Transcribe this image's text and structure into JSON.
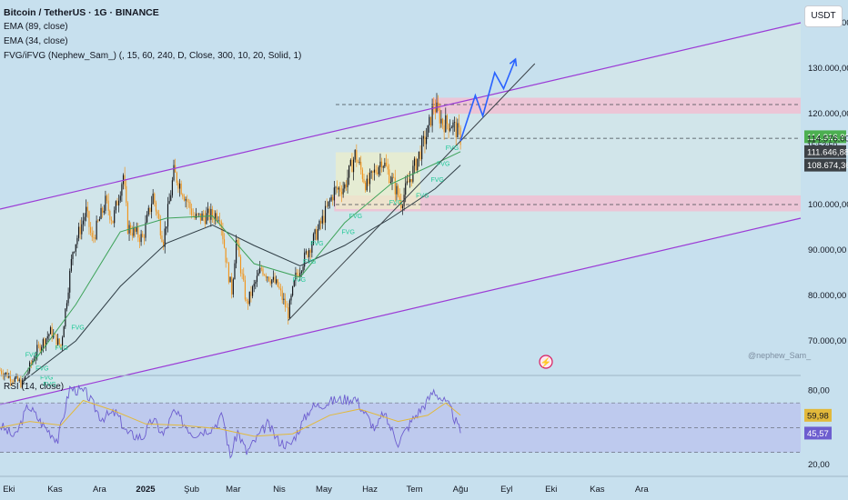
{
  "header": {
    "symbol": "Bitcoin / TetherUS · 1G · BINANCE",
    "indicator_1": "EMA (89, close)",
    "indicator_2": "EMA (34, close)",
    "indicator_3": "FVG/iFVG (Nephew_Sam_) (, 15, 60, 240, D, Close, 300, 10, 20, Solid, 1)",
    "currency_button": "USDT",
    "watermark": "@nephew_Sam_"
  },
  "rsi": {
    "title": "RSI (14, close)"
  },
  "colors": {
    "background": "#c7e0ee",
    "candle_up": "#111318",
    "candle_down": "#f0941c",
    "ema89": "#2f3d45",
    "ema34": "#3ea35a",
    "channel": "#9b3bd6",
    "fvg_box": "#f1bfd2",
    "fvg_label": "#20c997",
    "projection": "#2962ff",
    "rsi_line": "#6d5ecf",
    "rsi_ma": "#e2b93b",
    "last_price_tag": "#4caf50"
  },
  "chart_data": {
    "type": "candlestick",
    "symbol": "BTCUSDT",
    "timeframe": "1D",
    "price_axis": {
      "scale": "linear",
      "ylim": [
        63000,
        145000
      ],
      "ticks": [
        70000,
        80000,
        90000,
        100000,
        110000,
        120000,
        130000,
        140000
      ],
      "tick_labels": [
        "70.000,00",
        "80.000,00",
        "90.000,00",
        "100.000,00",
        "",
        "120.000,00",
        "130.000,00",
        "140.000,00"
      ]
    },
    "time_axis": {
      "xlim": [
        "2024-09-25",
        "2026-03-18"
      ],
      "ticks": [
        "2024-10-01",
        "2024-11-01",
        "2024-12-01",
        "2025-01-01",
        "2025-02-01",
        "2025-03-01",
        "2025-04-01",
        "2025-05-01",
        "2025-06-01",
        "2025-07-01",
        "2025-08-01",
        "2025-09-01",
        "2025-10-01",
        "2025-11-01",
        "2025-12-01"
      ],
      "tick_labels": [
        "Eki",
        "Kas",
        "Ara",
        "2025",
        "Şub",
        "Mar",
        "Nis",
        "May",
        "Haz",
        "Tem",
        "Ağu",
        "Eyl",
        "Eki",
        "Kas",
        "Ara"
      ]
    },
    "price_path": [
      [
        "2024-09-25",
        63500
      ],
      [
        "2024-10-10",
        60500
      ],
      [
        "2024-10-20",
        68000
      ],
      [
        "2024-10-29",
        72000
      ],
      [
        "2024-11-05",
        68800
      ],
      [
        "2024-11-13",
        90000
      ],
      [
        "2024-11-22",
        98500
      ],
      [
        "2024-11-26",
        92000
      ],
      [
        "2024-12-05",
        100500
      ],
      [
        "2024-12-10",
        96500
      ],
      [
        "2024-12-17",
        106500
      ],
      [
        "2024-12-20",
        95000
      ],
      [
        "2024-12-30",
        92500
      ],
      [
        "2025-01-06",
        102000
      ],
      [
        "2025-01-13",
        92000
      ],
      [
        "2025-01-20",
        107000
      ],
      [
        "2025-01-24",
        104500
      ],
      [
        "2025-02-03",
        97000
      ],
      [
        "2025-02-12",
        97500
      ],
      [
        "2025-02-20",
        98000
      ],
      [
        "2025-02-25",
        86000
      ],
      [
        "2025-02-28",
        81000
      ],
      [
        "2025-03-03",
        92000
      ],
      [
        "2025-03-10",
        78000
      ],
      [
        "2025-03-20",
        86000
      ],
      [
        "2025-03-31",
        82000
      ],
      [
        "2025-04-07",
        76000
      ],
      [
        "2025-04-12",
        84000
      ],
      [
        "2025-04-22",
        91000
      ],
      [
        "2025-04-28",
        95000
      ],
      [
        "2025-05-08",
        103000
      ],
      [
        "2025-05-15",
        104000
      ],
      [
        "2025-05-22",
        111000
      ],
      [
        "2025-05-30",
        104000
      ],
      [
        "2025-06-09",
        110000
      ],
      [
        "2025-06-17",
        104500
      ],
      [
        "2025-06-22",
        100500
      ],
      [
        "2025-06-30",
        107500
      ],
      [
        "2025-07-10",
        116000
      ],
      [
        "2025-07-14",
        122000
      ],
      [
        "2025-07-20",
        118000
      ],
      [
        "2025-07-26",
        117800
      ],
      [
        "2025-07-31",
        115500
      ],
      [
        "2025-08-01",
        114577
      ]
    ],
    "series": [
      {
        "name": "EMA (89, close)",
        "points": [
          [
            "2024-10-10",
            61000
          ],
          [
            "2024-11-15",
            70000
          ],
          [
            "2024-12-15",
            82000
          ],
          [
            "2025-01-15",
            91500
          ],
          [
            "2025-02-15",
            95500
          ],
          [
            "2025-03-15",
            91000
          ],
          [
            "2025-04-15",
            86500
          ],
          [
            "2025-05-15",
            91000
          ],
          [
            "2025-06-15",
            97000
          ],
          [
            "2025-07-15",
            103500
          ],
          [
            "2025-08-01",
            108674
          ]
        ]
      },
      {
        "name": "EMA (34, close)",
        "points": [
          [
            "2024-10-10",
            62000
          ],
          [
            "2024-11-15",
            78000
          ],
          [
            "2024-12-15",
            94000
          ],
          [
            "2025-01-15",
            97000
          ],
          [
            "2025-02-15",
            97500
          ],
          [
            "2025-03-15",
            87000
          ],
          [
            "2025-04-15",
            84000
          ],
          [
            "2025-05-15",
            96000
          ],
          [
            "2025-06-15",
            104500
          ],
          [
            "2025-07-15",
            109000
          ],
          [
            "2025-08-01",
            111647
          ]
        ]
      }
    ],
    "annotations": {
      "channel_upper": [
        [
          "2024-09-25",
          99000
        ],
        [
          "2026-03-18",
          140000
        ]
      ],
      "channel_lower": [
        [
          "2024-09-25",
          56000
        ],
        [
          "2026-03-18",
          97000
        ]
      ],
      "trendline": [
        [
          "2025-04-07",
          74500
        ],
        [
          "2025-09-20",
          131000
        ]
      ],
      "fvg_zones": [
        {
          "from": "2025-07-13",
          "to": "2026-03-18",
          "low": 120000,
          "high": 123500
        },
        {
          "from": "2025-05-08",
          "to": "2026-03-18",
          "low": 98500,
          "high": 102000
        }
      ],
      "consolidation_box": {
        "from": "2025-05-09",
        "to": "2025-07-05",
        "low": 99000,
        "high": 111500
      },
      "dashed_levels": [
        122000,
        114576,
        100000
      ],
      "fvg_labels": [
        [
          "2024-10-12",
          66500
        ],
        [
          "2024-10-19",
          63500
        ],
        [
          "2024-10-22",
          61500
        ],
        [
          "2024-10-24",
          60000
        ],
        [
          "2024-11-01",
          68000
        ],
        [
          "2024-11-12",
          72500
        ],
        [
          "2025-04-10",
          83000
        ],
        [
          "2025-04-17",
          87000
        ],
        [
          "2025-04-22",
          91000
        ],
        [
          "2025-05-13",
          93500
        ],
        [
          "2025-05-18",
          97000
        ],
        [
          "2025-06-14",
          100000
        ],
        [
          "2025-07-02",
          101500
        ],
        [
          "2025-07-12",
          105000
        ],
        [
          "2025-07-16",
          108500
        ],
        [
          "2025-07-22",
          112000
        ]
      ],
      "projection_path": [
        [
          "2025-08-01",
          114000
        ],
        [
          "2025-08-11",
          124000
        ],
        [
          "2025-08-16",
          119500
        ],
        [
          "2025-08-24",
          129000
        ],
        [
          "2025-08-30",
          125500
        ],
        [
          "2025-09-07",
          132000
        ]
      ]
    },
    "price_labels": [
      {
        "value": 114916.8,
        "text": "114.916,80",
        "color": "#4caf50",
        "style": "tag"
      },
      {
        "value": 114576,
        "text": "114.576,00",
        "style": "plain"
      },
      {
        "value": 113200,
        "text": "15:53:50",
        "style": "plain-small"
      },
      {
        "value": 111646.88,
        "text": "111.646,88",
        "color": "#3c4146",
        "style": "tag"
      },
      {
        "value": 108674.36,
        "text": "108.674,36",
        "color": "#3c4146",
        "style": "tag"
      }
    ],
    "rsi_pane": {
      "title": "RSI (14, close)",
      "ylim": [
        15,
        90
      ],
      "ticks": [
        20,
        40,
        60,
        80
      ],
      "tick_labels": [
        "20,00",
        "",
        "",
        "80,00"
      ],
      "band": [
        30,
        70
      ],
      "midline": 50,
      "rsi_path": [
        [
          "2024-09-25",
          52
        ],
        [
          "2024-10-05",
          42
        ],
        [
          "2024-10-14",
          68
        ],
        [
          "2024-10-24",
          52
        ],
        [
          "2024-11-03",
          40
        ],
        [
          "2024-11-11",
          82
        ],
        [
          "2024-11-22",
          78
        ],
        [
          "2024-12-02",
          58
        ],
        [
          "2024-12-12",
          62
        ],
        [
          "2024-12-20",
          45
        ],
        [
          "2024-12-30",
          42
        ],
        [
          "2025-01-06",
          57
        ],
        [
          "2025-01-13",
          44
        ],
        [
          "2025-01-20",
          63
        ],
        [
          "2025-02-02",
          45
        ],
        [
          "2025-02-15",
          50
        ],
        [
          "2025-02-22",
          60
        ],
        [
          "2025-02-27",
          26
        ],
        [
          "2025-03-04",
          47
        ],
        [
          "2025-03-10",
          30
        ],
        [
          "2025-03-24",
          53
        ],
        [
          "2025-03-31",
          40
        ],
        [
          "2025-04-08",
          35
        ],
        [
          "2025-04-22",
          66
        ],
        [
          "2025-05-08",
          72
        ],
        [
          "2025-05-22",
          74
        ],
        [
          "2025-06-05",
          48
        ],
        [
          "2025-06-10",
          62
        ],
        [
          "2025-06-20",
          38
        ],
        [
          "2025-06-30",
          57
        ],
        [
          "2025-07-10",
          72
        ],
        [
          "2025-07-14",
          80
        ],
        [
          "2025-07-25",
          66
        ],
        [
          "2025-08-01",
          45.57
        ]
      ],
      "ma_path": [
        [
          "2024-09-25",
          50
        ],
        [
          "2024-10-15",
          55
        ],
        [
          "2024-11-05",
          52
        ],
        [
          "2024-11-20",
          72
        ],
        [
          "2024-12-10",
          64
        ],
        [
          "2025-01-01",
          53
        ],
        [
          "2025-01-25",
          52
        ],
        [
          "2025-02-20",
          49
        ],
        [
          "2025-03-15",
          43
        ],
        [
          "2025-04-10",
          45
        ],
        [
          "2025-05-05",
          60
        ],
        [
          "2025-05-25",
          65
        ],
        [
          "2025-06-20",
          55
        ],
        [
          "2025-07-10",
          60
        ],
        [
          "2025-07-22",
          70
        ],
        [
          "2025-08-01",
          59.98
        ]
      ],
      "labels": [
        {
          "value": 59.98,
          "text": "59,98",
          "color": "#e2b93b",
          "text_color": "#131722"
        },
        {
          "value": 45.57,
          "text": "45,57",
          "color": "#6d5ecf",
          "text_color": "#ffffff"
        }
      ]
    }
  }
}
